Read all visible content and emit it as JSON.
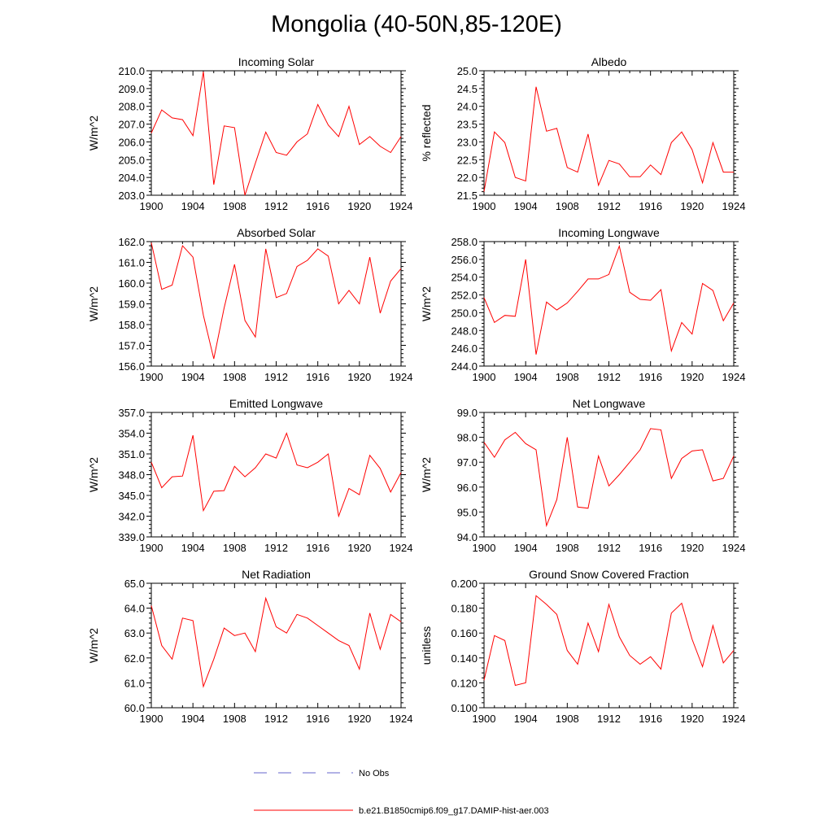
{
  "title": "Mongolia (40-50N,85-120E)",
  "colors": {
    "model_line": "#ff0000",
    "obs_line": "#6666cc",
    "axis": "#000000"
  },
  "legend": {
    "obs_label": "No Obs",
    "model_label": "b.e21.B1850cmip6.f09_g17.DAMIP-hist-aer.003"
  },
  "chart_data": [
    {
      "type": "line",
      "title": "Incoming Solar",
      "ylabel": "W/m^2",
      "xlim": [
        1900,
        1924
      ],
      "ylim": [
        203.0,
        210.0
      ],
      "x_ticks": [
        1900,
        1904,
        1908,
        1912,
        1916,
        1920,
        1924
      ],
      "y_ticks": [
        "203.0",
        "204.0",
        "205.0",
        "206.0",
        "207.0",
        "208.0",
        "209.0",
        "210.0"
      ],
      "x": [
        1900,
        1901,
        1902,
        1903,
        1904,
        1905,
        1906,
        1907,
        1908,
        1909,
        1910,
        1911,
        1912,
        1913,
        1914,
        1915,
        1916,
        1917,
        1918,
        1919,
        1920,
        1921,
        1922,
        1923,
        1924
      ],
      "series": [
        {
          "values": [
            206.5,
            207.8,
            207.35,
            207.25,
            206.35,
            209.95,
            203.6,
            206.9,
            206.8,
            203.0,
            204.8,
            206.55,
            205.4,
            205.25,
            206.0,
            206.45,
            208.1,
            206.95,
            206.3,
            208.0,
            205.85,
            206.3,
            205.75,
            205.4,
            206.3
          ]
        }
      ]
    },
    {
      "type": "line",
      "title": "Albedo",
      "ylabel": "% reflected",
      "xlim": [
        1900,
        1924
      ],
      "ylim": [
        21.5,
        25.0
      ],
      "x_ticks": [
        1900,
        1904,
        1908,
        1912,
        1916,
        1920,
        1924
      ],
      "y_ticks": [
        "21.5",
        "22.0",
        "22.5",
        "23.0",
        "23.5",
        "24.0",
        "24.5",
        "25.0"
      ],
      "x": [
        1900,
        1901,
        1902,
        1903,
        1904,
        1905,
        1906,
        1907,
        1908,
        1909,
        1910,
        1911,
        1912,
        1913,
        1914,
        1915,
        1916,
        1917,
        1918,
        1919,
        1920,
        1921,
        1922,
        1923,
        1924
      ],
      "series": [
        {
          "values": [
            21.6,
            23.28,
            22.98,
            22.0,
            21.9,
            24.55,
            23.3,
            23.38,
            22.28,
            22.15,
            23.22,
            21.78,
            22.48,
            22.38,
            22.02,
            22.02,
            22.35,
            22.08,
            22.98,
            23.28,
            22.78,
            21.85,
            22.98,
            22.15,
            22.15
          ]
        }
      ]
    },
    {
      "type": "line",
      "title": "Absorbed Solar",
      "ylabel": "W/m^2",
      "xlim": [
        1900,
        1924
      ],
      "ylim": [
        156.0,
        162.0
      ],
      "x_ticks": [
        1900,
        1904,
        1908,
        1912,
        1916,
        1920,
        1924
      ],
      "y_ticks": [
        "156.0",
        "157.0",
        "158.0",
        "159.0",
        "160.0",
        "161.0",
        "162.0"
      ],
      "x": [
        1900,
        1901,
        1902,
        1903,
        1904,
        1905,
        1906,
        1907,
        1908,
        1909,
        1910,
        1911,
        1912,
        1913,
        1914,
        1915,
        1916,
        1917,
        1918,
        1919,
        1920,
        1921,
        1922,
        1923,
        1924
      ],
      "series": [
        {
          "values": [
            161.95,
            159.7,
            159.9,
            161.8,
            161.25,
            158.45,
            156.35,
            158.8,
            160.9,
            158.2,
            157.4,
            161.65,
            159.3,
            159.5,
            160.8,
            161.1,
            161.65,
            161.3,
            159.0,
            159.65,
            159.0,
            161.25,
            158.55,
            160.1,
            160.7
          ]
        }
      ]
    },
    {
      "type": "line",
      "title": "Incoming Longwave",
      "ylabel": "W/m^2",
      "xlim": [
        1900,
        1924
      ],
      "ylim": [
        244.0,
        258.0
      ],
      "x_ticks": [
        1900,
        1904,
        1908,
        1912,
        1916,
        1920,
        1924
      ],
      "y_ticks": [
        "244.0",
        "246.0",
        "248.0",
        "250.0",
        "252.0",
        "254.0",
        "256.0",
        "258.0"
      ],
      "x": [
        1900,
        1901,
        1902,
        1903,
        1904,
        1905,
        1906,
        1907,
        1908,
        1909,
        1910,
        1911,
        1912,
        1913,
        1914,
        1915,
        1916,
        1917,
        1918,
        1919,
        1920,
        1921,
        1922,
        1923,
        1924
      ],
      "series": [
        {
          "values": [
            251.7,
            248.9,
            249.7,
            249.6,
            256.0,
            245.3,
            251.2,
            250.3,
            251.1,
            252.4,
            253.8,
            253.8,
            254.3,
            257.5,
            252.3,
            251.5,
            251.4,
            252.6,
            245.7,
            248.9,
            247.6,
            253.3,
            252.5,
            249.1,
            251.1
          ]
        }
      ]
    },
    {
      "type": "line",
      "title": "Emitted Longwave",
      "ylabel": "W/m^2",
      "xlim": [
        1900,
        1924
      ],
      "ylim": [
        339.0,
        357.0
      ],
      "x_ticks": [
        1900,
        1904,
        1908,
        1912,
        1916,
        1920,
        1924
      ],
      "y_ticks": [
        "339.0",
        "342.0",
        "345.0",
        "348.0",
        "351.0",
        "354.0",
        "357.0"
      ],
      "x": [
        1900,
        1901,
        1902,
        1903,
        1904,
        1905,
        1906,
        1907,
        1908,
        1909,
        1910,
        1911,
        1912,
        1913,
        1914,
        1915,
        1916,
        1917,
        1918,
        1919,
        1920,
        1921,
        1922,
        1923,
        1924
      ],
      "series": [
        {
          "values": [
            349.8,
            346.1,
            347.7,
            347.8,
            353.7,
            342.8,
            345.6,
            345.7,
            349.2,
            347.7,
            349.0,
            351.0,
            350.4,
            354.0,
            349.4,
            349.0,
            349.8,
            351.0,
            342.0,
            346.0,
            345.1,
            350.8,
            348.9,
            345.5,
            348.3
          ]
        }
      ]
    },
    {
      "type": "line",
      "title": "Net Longwave",
      "ylabel": "W/m^2",
      "xlim": [
        1900,
        1924
      ],
      "ylim": [
        94.0,
        99.0
      ],
      "x_ticks": [
        1900,
        1904,
        1908,
        1912,
        1916,
        1920,
        1924
      ],
      "y_ticks": [
        "94.0",
        "95.0",
        "96.0",
        "97.0",
        "98.0",
        "99.0"
      ],
      "x": [
        1900,
        1901,
        1902,
        1903,
        1904,
        1905,
        1906,
        1907,
        1908,
        1909,
        1910,
        1911,
        1912,
        1913,
        1914,
        1915,
        1916,
        1917,
        1918,
        1919,
        1920,
        1921,
        1922,
        1923,
        1924
      ],
      "series": [
        {
          "values": [
            97.8,
            97.2,
            97.9,
            98.2,
            97.75,
            97.5,
            94.45,
            95.5,
            98.0,
            95.2,
            95.15,
            97.25,
            96.05,
            96.5,
            97.0,
            97.5,
            98.35,
            98.3,
            96.35,
            97.15,
            97.45,
            97.5,
            96.25,
            96.35,
            97.25
          ]
        }
      ]
    },
    {
      "type": "line",
      "title": "Net Radiation",
      "ylabel": "W/m^2",
      "xlim": [
        1900,
        1924
      ],
      "ylim": [
        60.0,
        65.0
      ],
      "x_ticks": [
        1900,
        1904,
        1908,
        1912,
        1916,
        1920,
        1924
      ],
      "y_ticks": [
        "60.0",
        "61.0",
        "62.0",
        "63.0",
        "64.0",
        "65.0"
      ],
      "x": [
        1900,
        1901,
        1902,
        1903,
        1904,
        1905,
        1906,
        1907,
        1908,
        1909,
        1910,
        1911,
        1912,
        1913,
        1914,
        1915,
        1916,
        1917,
        1918,
        1919,
        1920,
        1921,
        1922,
        1923,
        1924
      ],
      "series": [
        {
          "values": [
            64.1,
            62.5,
            61.95,
            63.6,
            63.5,
            60.85,
            61.95,
            63.2,
            62.9,
            63.0,
            62.25,
            64.4,
            63.25,
            63.0,
            63.75,
            63.6,
            63.3,
            63.0,
            62.7,
            62.5,
            61.55,
            63.8,
            62.35,
            63.75,
            63.45
          ]
        }
      ]
    },
    {
      "type": "line",
      "title": "Ground Snow Covered Fraction",
      "ylabel": "unitless",
      "xlim": [
        1900,
        1924
      ],
      "ylim": [
        0.1,
        0.2
      ],
      "x_ticks": [
        1900,
        1904,
        1908,
        1912,
        1916,
        1920,
        1924
      ],
      "y_ticks": [
        "0.100",
        "0.120",
        "0.140",
        "0.160",
        "0.180",
        "0.200"
      ],
      "x": [
        1900,
        1901,
        1902,
        1903,
        1904,
        1905,
        1906,
        1907,
        1908,
        1909,
        1910,
        1911,
        1912,
        1913,
        1914,
        1915,
        1916,
        1917,
        1918,
        1919,
        1920,
        1921,
        1922,
        1923,
        1924
      ],
      "series": [
        {
          "values": [
            0.122,
            0.158,
            0.154,
            0.118,
            0.12,
            0.19,
            0.183,
            0.175,
            0.146,
            0.135,
            0.168,
            0.145,
            0.183,
            0.157,
            0.142,
            0.135,
            0.141,
            0.131,
            0.176,
            0.184,
            0.155,
            0.133,
            0.166,
            0.136,
            0.146
          ]
        }
      ]
    }
  ]
}
